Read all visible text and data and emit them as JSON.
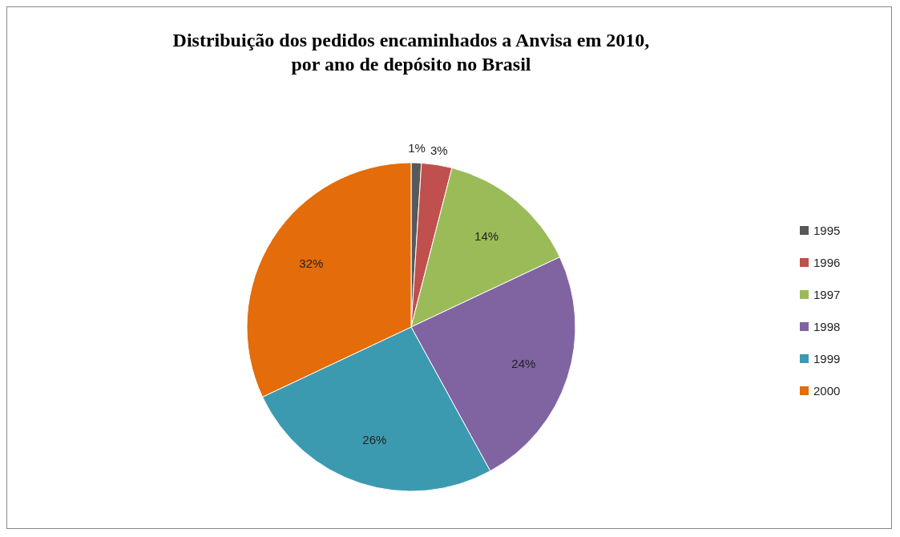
{
  "chart_data": {
    "type": "pie",
    "title": "Distribuição dos pedidos encaminhados a Anvisa em 2010,\npor ano de depósito no Brasil",
    "categories": [
      "1995",
      "1996",
      "1997",
      "1998",
      "1999",
      "2000"
    ],
    "values": [
      1,
      3,
      14,
      24,
      26,
      32
    ],
    "colors": [
      "#595959",
      "#c0504d",
      "#9bbb59",
      "#8064a2",
      "#3c9ab0",
      "#e46c0a"
    ],
    "value_labels": [
      "1%",
      "3%",
      "14%",
      "24%",
      "26%",
      "32%"
    ],
    "legend": "right"
  }
}
